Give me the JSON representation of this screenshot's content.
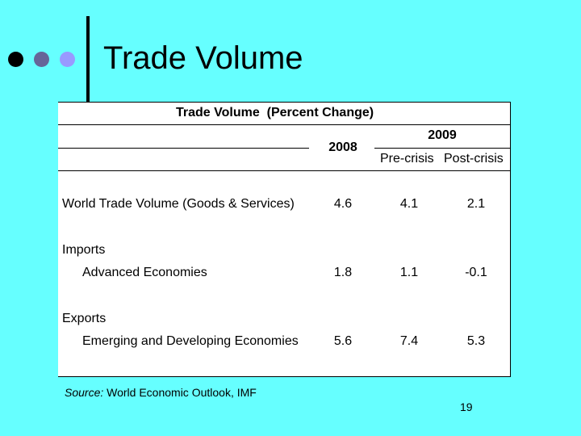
{
  "slide": {
    "title": "Trade Volume",
    "page_number": "19",
    "bullet_colors": [
      "#000000",
      "#666699",
      "#9999ff"
    ]
  },
  "table": {
    "caption": "Trade Volume  (Percent Change)",
    "header": {
      "col_2008": "2008",
      "col_2009": "2009",
      "sub_precrisis": "Pre-crisis",
      "sub_postcrisis": "Post-crisis"
    },
    "rows": [
      {
        "label": "World Trade Volume (Goods & Services)",
        "v2008": "4.6",
        "pre": "4.1",
        "post": "2.1"
      },
      {
        "label": "Imports"
      },
      {
        "label": "Advanced Economies",
        "v2008": "1.8",
        "pre": "1.1",
        "post": "-0.1"
      },
      {
        "label": "Exports"
      },
      {
        "label": "Emerging and Developing Economies",
        "v2008": "5.6",
        "pre": "7.4",
        "post": "5.3"
      }
    ]
  },
  "source": {
    "prefix": "Source:",
    "text": " World Economic Outlook, IMF"
  }
}
